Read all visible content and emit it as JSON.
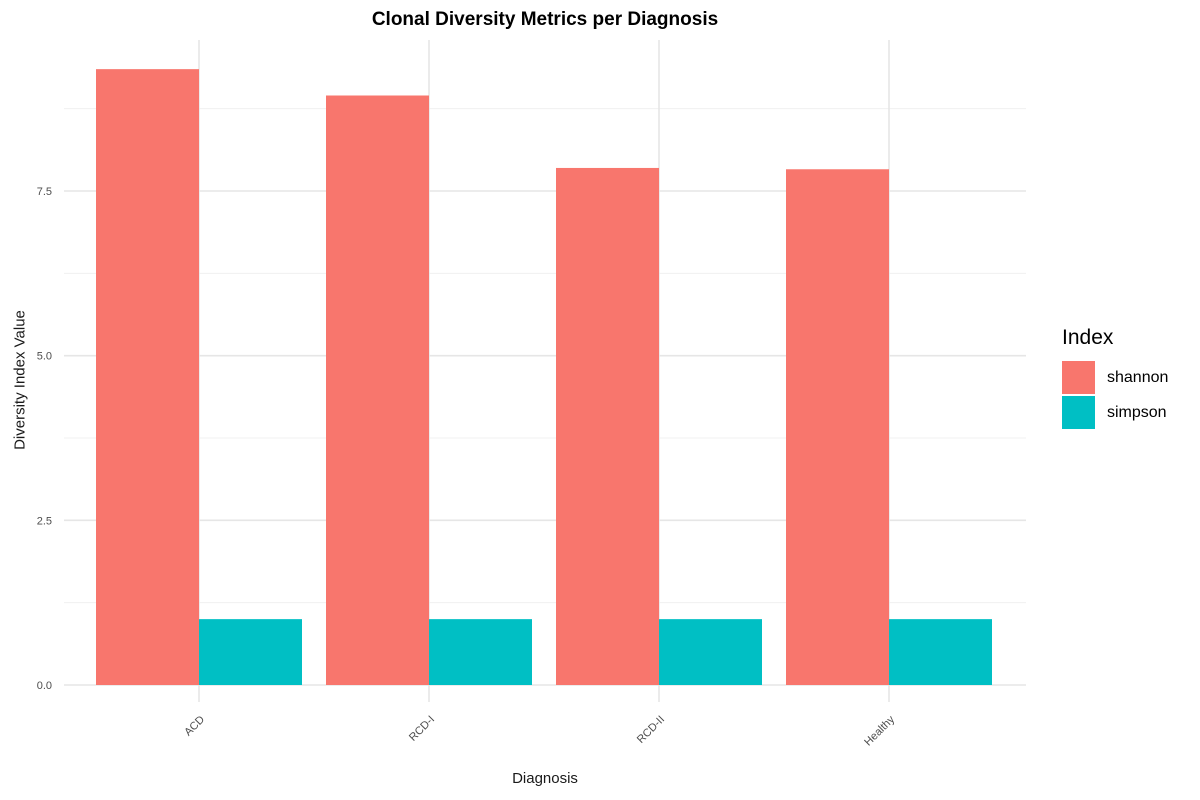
{
  "chart_data": {
    "type": "bar",
    "title": "Clonal Diversity Metrics per Diagnosis",
    "xlabel": "Diagnosis",
    "ylabel": "Diversity Index Value",
    "categories": [
      "ACD",
      "RCD-I",
      "RCD-II",
      "Healthy"
    ],
    "series": [
      {
        "name": "shannon",
        "color": "#F8766D",
        "values": [
          9.35,
          8.95,
          7.85,
          7.83
        ]
      },
      {
        "name": "simpson",
        "color": "#00BFC4",
        "values": [
          1.0,
          1.0,
          1.0,
          1.0
        ]
      }
    ],
    "ylim": [
      0,
      9.9
    ],
    "yticks": [
      0.0,
      2.5,
      5.0,
      7.5
    ],
    "ytick_labels": [
      "0.0",
      "2.5",
      "5.0",
      "7.5"
    ],
    "grid": true,
    "legend": {
      "title": "Index",
      "position": "right"
    }
  }
}
